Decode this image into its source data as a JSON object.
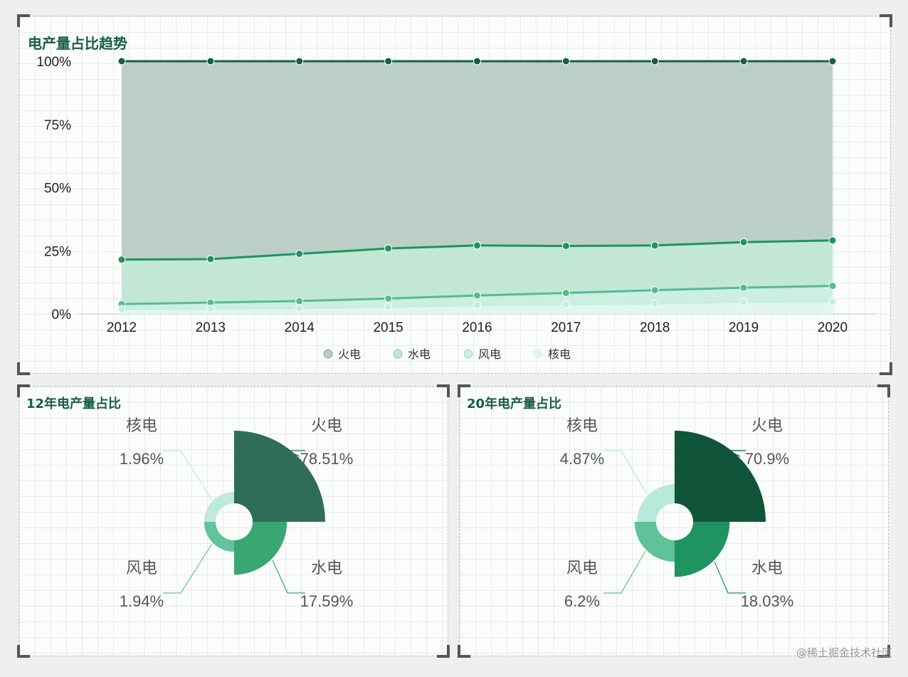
{
  "top_panel": {
    "title": "电产量占比趋势"
  },
  "pie_left": {
    "title": "12年电产量占比"
  },
  "pie_right": {
    "title": "20年电产量占比"
  },
  "watermark": "@稀土掘金技术社区",
  "colors": {
    "thermal_line": "#17603f",
    "thermal_fill": "#bbcfc8",
    "hydro_line": "#1f9460",
    "hydro_fill": "#c3e7d6",
    "wind_line": "#55bb90",
    "wind_fill": "#cdeee2",
    "nuclear_line": "#c6eee0",
    "nuclear_fill": "#e1f6ee",
    "axis_text": "#222222",
    "label_text": "#555555"
  },
  "chart_data": [
    {
      "type": "area",
      "stacked": true,
      "title": "电产量占比趋势",
      "categories": [
        "2012",
        "2013",
        "2014",
        "2015",
        "2016",
        "2017",
        "2018",
        "2019",
        "2020"
      ],
      "y_ticks": [
        "0%",
        "25%",
        "50%",
        "75%",
        "100%"
      ],
      "ylim": [
        0,
        100
      ],
      "legend_position": "bottom-center",
      "legend": [
        "火电",
        "水电",
        "风电",
        "核电"
      ],
      "cumulative_series": [
        {
          "name": "火电",
          "values": [
            100,
            100,
            100,
            100,
            100,
            100,
            100,
            100,
            100
          ]
        },
        {
          "name": "水电",
          "values": [
            21.5,
            21.7,
            23.8,
            25.9,
            27.1,
            26.9,
            27.1,
            28.4,
            29.1
          ]
        },
        {
          "name": "风电",
          "values": [
            3.9,
            4.5,
            5.1,
            6.1,
            7.3,
            8.3,
            9.4,
            10.4,
            11.1
          ]
        },
        {
          "name": "核电",
          "values": [
            1.96,
            2.1,
            2.3,
            2.9,
            3.5,
            3.8,
            4.2,
            4.8,
            4.87
          ]
        }
      ]
    },
    {
      "type": "pie",
      "variant": "rose",
      "title": "12年电产量占比",
      "slices": [
        {
          "name": "火电",
          "label": "78.51%",
          "value": 78.51
        },
        {
          "name": "水电",
          "label": "17.59%",
          "value": 17.59
        },
        {
          "name": "风电",
          "label": "1.94%",
          "value": 1.94
        },
        {
          "name": "核电",
          "label": "1.96%",
          "value": 1.96
        }
      ]
    },
    {
      "type": "pie",
      "variant": "rose",
      "title": "20年电产量占比",
      "slices": [
        {
          "name": "火电",
          "label": "70.9%",
          "value": 70.9
        },
        {
          "name": "水电",
          "label": "18.03%",
          "value": 18.03
        },
        {
          "name": "风电",
          "label": "6.2%",
          "value": 6.2
        },
        {
          "name": "核电",
          "label": "4.87%",
          "value": 4.87
        }
      ]
    }
  ]
}
